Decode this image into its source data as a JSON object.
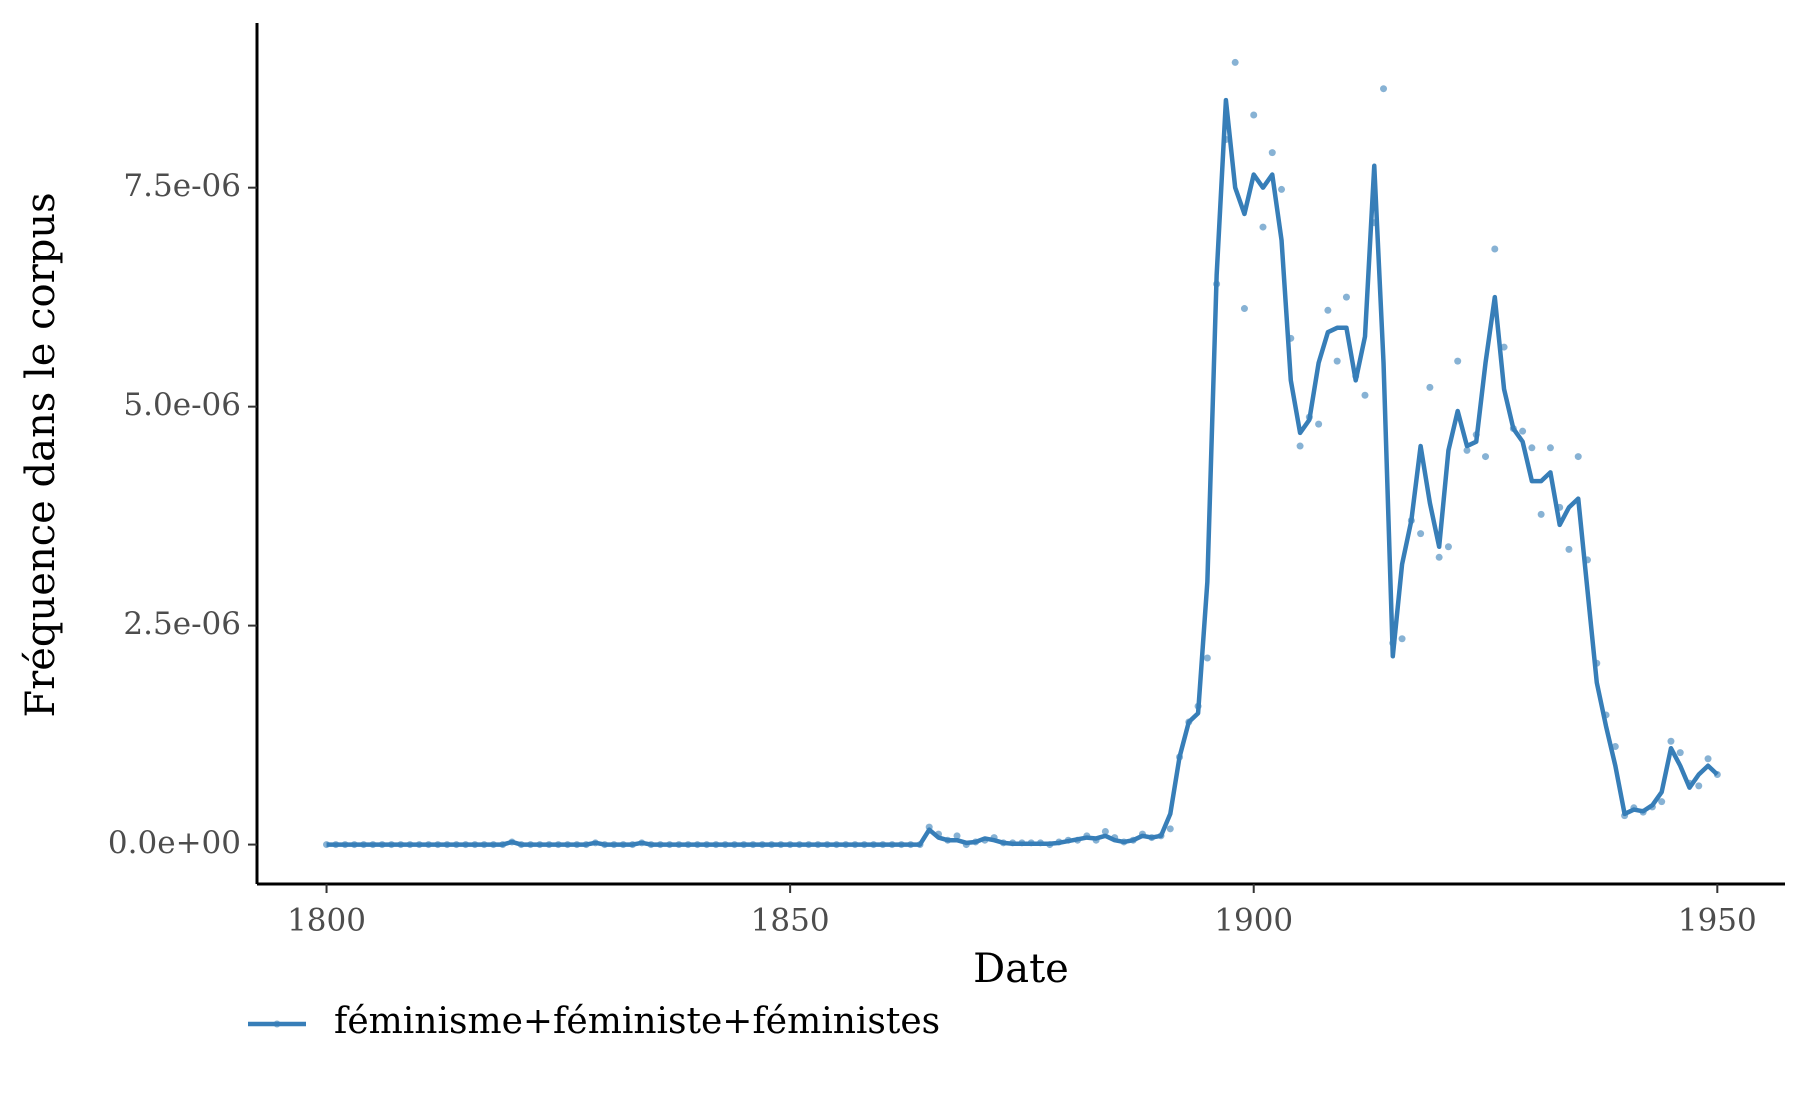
{
  "chart_data": {
    "type": "line",
    "x_label": "Date",
    "y_label": "Fréquence dans le corpus",
    "xlim": [
      1792.5,
      1957.3
    ],
    "xticks": [
      1800,
      1850,
      1900,
      1950
    ],
    "ylim": [
      -4.5e-07,
      9.38e-06
    ],
    "yticks": [
      {
        "value": 0,
        "label": "0.0e+00"
      },
      {
        "value": 2.5e-06,
        "label": "2.5e-06"
      },
      {
        "value": 5e-06,
        "label": "5.0e-06"
      },
      {
        "value": 7.5e-06,
        "label": "7.5e-06"
      }
    ],
    "grid": false,
    "legend": "bottom-left",
    "x": [
      1800,
      1801,
      1802,
      1803,
      1804,
      1805,
      1806,
      1807,
      1808,
      1809,
      1810,
      1811,
      1812,
      1813,
      1814,
      1815,
      1816,
      1817,
      1818,
      1819,
      1820,
      1821,
      1822,
      1823,
      1824,
      1825,
      1826,
      1827,
      1828,
      1829,
      1830,
      1831,
      1832,
      1833,
      1834,
      1835,
      1836,
      1837,
      1838,
      1839,
      1840,
      1841,
      1842,
      1843,
      1844,
      1845,
      1846,
      1847,
      1848,
      1849,
      1850,
      1851,
      1852,
      1853,
      1854,
      1855,
      1856,
      1857,
      1858,
      1859,
      1860,
      1861,
      1862,
      1863,
      1864,
      1865,
      1866,
      1867,
      1868,
      1869,
      1870,
      1871,
      1872,
      1873,
      1874,
      1875,
      1876,
      1877,
      1878,
      1879,
      1880,
      1881,
      1882,
      1883,
      1884,
      1885,
      1886,
      1887,
      1888,
      1889,
      1890,
      1891,
      1892,
      1893,
      1894,
      1895,
      1896,
      1897,
      1898,
      1899,
      1900,
      1901,
      1902,
      1903,
      1904,
      1905,
      1906,
      1907,
      1908,
      1909,
      1910,
      1911,
      1912,
      1913,
      1914,
      1915,
      1916,
      1917,
      1918,
      1919,
      1920,
      1921,
      1922,
      1923,
      1924,
      1925,
      1926,
      1927,
      1928,
      1929,
      1930,
      1931,
      1932,
      1933,
      1934,
      1935,
      1936,
      1937,
      1938,
      1939,
      1940,
      1941,
      1942,
      1943,
      1944,
      1945,
      1946,
      1947,
      1948,
      1949,
      1950
    ],
    "series": [
      {
        "name": "féminisme+féministe+féministes",
        "color": "#377eb8",
        "values": [
          0,
          0,
          0,
          0,
          0,
          0,
          0,
          0,
          0,
          0,
          0,
          0,
          0,
          0,
          0,
          0,
          0,
          0,
          0,
          0,
          3e-08,
          0,
          0,
          0,
          0,
          0,
          0,
          0,
          0,
          2e-08,
          0,
          0,
          0,
          0,
          2e-08,
          0,
          0,
          0,
          0,
          0,
          0,
          0,
          0,
          0,
          0,
          0,
          0,
          0,
          0,
          0,
          0,
          0,
          0,
          0,
          0,
          0,
          0,
          0,
          0,
          0,
          0,
          0,
          0,
          0,
          0,
          2e-07,
          1.2e-07,
          5e-08,
          1e-07,
          0,
          3e-08,
          5e-08,
          8e-08,
          2e-08,
          2e-08,
          2e-08,
          2e-08,
          2e-08,
          0,
          3e-08,
          5e-08,
          5e-08,
          1e-07,
          5e-08,
          1.5e-07,
          8e-08,
          3e-08,
          5e-08,
          1.2e-07,
          8e-08,
          1e-07,
          1.8e-07,
          1e-06,
          1.4e-06,
          1.58e-06,
          2.13e-06,
          6.4e-06,
          8.05e-06,
          8.93e-06,
          6.12e-06,
          8.33e-06,
          7.05e-06,
          7.9e-06,
          7.48e-06,
          5.78e-06,
          4.55e-06,
          4.88e-06,
          4.8e-06,
          6.1e-06,
          5.52e-06,
          6.25e-06,
          5.35e-06,
          5.13e-06,
          7.1e-06,
          8.63e-06,
          2.3e-06,
          2.35e-06,
          3.7e-06,
          3.55e-06,
          5.22e-06,
          3.28e-06,
          3.4e-06,
          5.52e-06,
          4.5e-06,
          4.68e-06,
          4.43e-06,
          6.8e-06,
          5.68e-06,
          4.75e-06,
          4.72e-06,
          4.53e-06,
          3.77e-06,
          4.53e-06,
          3.85e-06,
          3.37e-06,
          4.43e-06,
          3.25e-06,
          2.07e-06,
          1.48e-06,
          1.12e-06,
          3.3e-07,
          4.2e-07,
          3.7e-07,
          4.3e-07,
          4.9e-07,
          1.18e-06,
          1.05e-06,
          7e-07,
          6.7e-07,
          9.8e-07,
          8e-07
        ],
        "smooth": [
          0,
          0,
          0,
          0,
          0,
          0,
          0,
          0,
          0,
          0,
          0,
          0,
          0,
          0,
          0,
          0,
          0,
          0,
          0,
          0,
          3e-08,
          0,
          0,
          0,
          0,
          0,
          0,
          0,
          0,
          2e-08,
          0,
          0,
          0,
          0,
          2e-08,
          0,
          0,
          0,
          0,
          0,
          0,
          0,
          0,
          0,
          0,
          0,
          0,
          0,
          0,
          0,
          0,
          0,
          0,
          0,
          0,
          0,
          0,
          0,
          0,
          0,
          0,
          0,
          0,
          0,
          0,
          1.7e-07,
          8e-08,
          5e-08,
          5e-08,
          2e-08,
          3e-08,
          7e-08,
          5e-08,
          2e-08,
          1e-08,
          1e-08,
          1e-08,
          1e-08,
          1e-08,
          2e-08,
          4e-08,
          6e-08,
          8e-08,
          7e-08,
          1e-07,
          5e-08,
          3e-08,
          5e-08,
          1e-07,
          8e-08,
          1e-07,
          3.5e-07,
          1e-06,
          1.4e-06,
          1.5e-06,
          3e-06,
          6.5e-06,
          8.5e-06,
          7.5e-06,
          7.2e-06,
          7.65e-06,
          7.5e-06,
          7.65e-06,
          6.9e-06,
          5.3e-06,
          4.7e-06,
          4.85e-06,
          5.5e-06,
          5.85e-06,
          5.9e-06,
          5.9e-06,
          5.3e-06,
          5.8e-06,
          7.75e-06,
          5.5e-06,
          2.15e-06,
          3.2e-06,
          3.7e-06,
          4.55e-06,
          3.9e-06,
          3.4e-06,
          4.5e-06,
          4.95e-06,
          4.55e-06,
          4.6e-06,
          5.5e-06,
          6.25e-06,
          5.2e-06,
          4.75e-06,
          4.6e-06,
          4.15e-06,
          4.15e-06,
          4.25e-06,
          3.65e-06,
          3.85e-06,
          3.95e-06,
          2.9e-06,
          1.85e-06,
          1.35e-06,
          9e-07,
          3.5e-07,
          4e-07,
          3.8e-07,
          4.5e-07,
          6e-07,
          1.1e-06,
          9e-07,
          6.5e-07,
          8e-07,
          9e-07,
          8e-07
        ]
      }
    ]
  }
}
